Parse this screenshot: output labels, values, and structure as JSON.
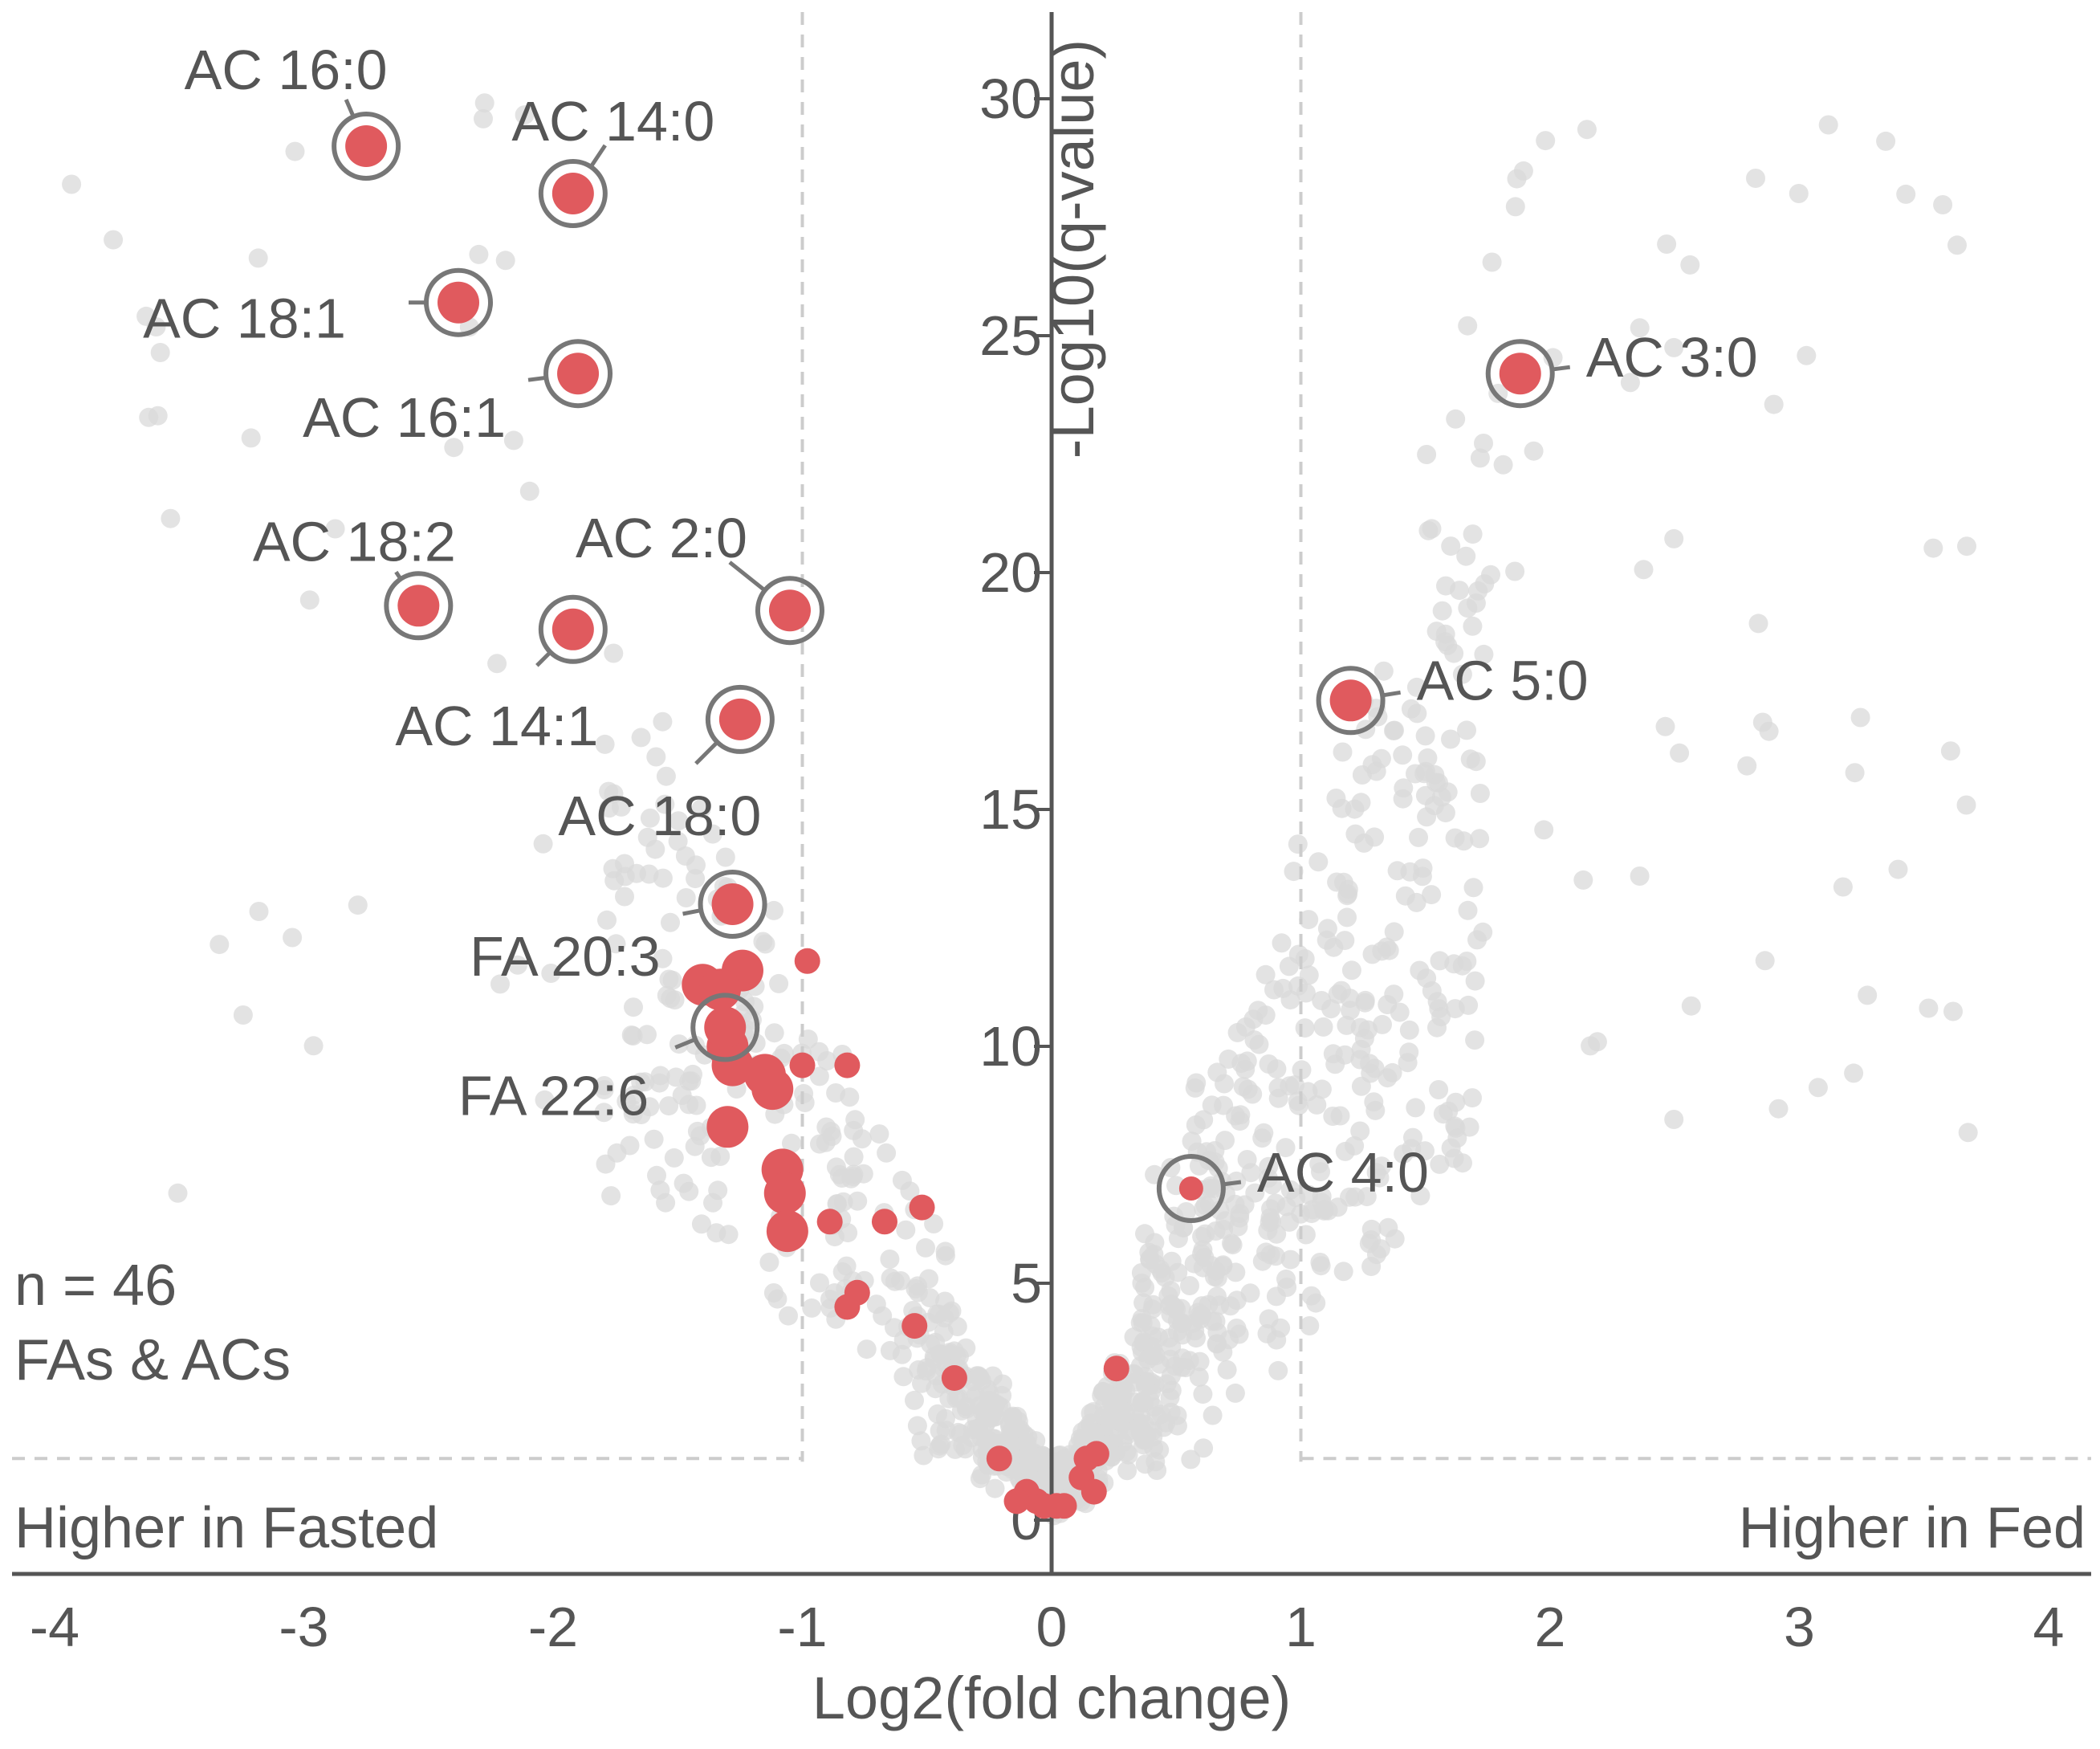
{
  "chart_data": {
    "type": "scatter",
    "title": "",
    "xlabel": "Log2(fold change)",
    "ylabel": "-Log10(q-value)",
    "xlim": [
      -4.2,
      4.2
    ],
    "ylim": [
      -0.8,
      31.5
    ],
    "x_ticks": [
      "-4",
      "-3",
      "-2",
      "-1",
      "0",
      "1",
      "2",
      "3",
      "4"
    ],
    "y_ticks": [
      "0",
      "5",
      "10",
      "15",
      "20",
      "25",
      "30"
    ],
    "thresholds": {
      "log2fc": [
        -1,
        1
      ],
      "q_line": 1.3
    },
    "grid": false,
    "colors": {
      "highlight": "#e05a5e",
      "background_points": "#d9d9d9",
      "ring": "#777777",
      "axis": "#555555",
      "threshold": "#cccccc"
    },
    "annotations": {
      "n_line1": "n = 46",
      "n_line2": "FAs & ACs",
      "left_region": "Higher in Fasted",
      "right_region": "Higher in Fed"
    },
    "labeled_points": [
      {
        "label": "AC 16:0",
        "x": -2.75,
        "y": 29.0
      },
      {
        "label": "AC 14:0",
        "x": -1.92,
        "y": 28.0
      },
      {
        "label": "AC 18:1",
        "x": -2.38,
        "y": 25.7
      },
      {
        "label": "AC 16:1",
        "x": -1.9,
        "y": 24.2
      },
      {
        "label": "AC 18:2",
        "x": -2.54,
        "y": 19.3
      },
      {
        "label": "AC 2:0",
        "x": -1.05,
        "y": 19.2
      },
      {
        "label": "AC 14:1",
        "x": -1.92,
        "y": 18.8
      },
      {
        "label": "AC 18:0",
        "x": -1.25,
        "y": 16.9
      },
      {
        "label": "FA 20:3",
        "x": -1.28,
        "y": 13.0
      },
      {
        "label": "FA 22:6",
        "x": -1.31,
        "y": 10.4
      },
      {
        "label": "AC 3:0",
        "x": 1.88,
        "y": 24.2
      },
      {
        "label": "AC 5:0",
        "x": 1.2,
        "y": 17.3
      },
      {
        "label": "AC 4:0",
        "x": 0.56,
        "y": 7.0
      }
    ],
    "highlight_points": [
      {
        "x": -1.24,
        "y": 11.6
      },
      {
        "x": -1.4,
        "y": 11.3
      },
      {
        "x": -1.33,
        "y": 11.2
      },
      {
        "x": -1.3,
        "y": 10.0
      },
      {
        "x": -1.28,
        "y": 9.6
      },
      {
        "x": -1.15,
        "y": 9.4
      },
      {
        "x": -1.12,
        "y": 9.1
      },
      {
        "x": -1.3,
        "y": 8.3
      },
      {
        "x": -1.08,
        "y": 7.4
      },
      {
        "x": -1.07,
        "y": 6.9
      },
      {
        "x": -1.06,
        "y": 6.1
      },
      {
        "x": -1.0,
        "y": 9.6
      },
      {
        "x": -0.98,
        "y": 11.8
      },
      {
        "x": -0.82,
        "y": 9.6
      },
      {
        "x": -0.89,
        "y": 6.3
      },
      {
        "x": -0.67,
        "y": 6.3
      },
      {
        "x": -0.52,
        "y": 6.6
      },
      {
        "x": -0.78,
        "y": 4.8
      },
      {
        "x": -0.82,
        "y": 4.5
      },
      {
        "x": -0.55,
        "y": 4.1
      },
      {
        "x": -0.39,
        "y": 3.0
      },
      {
        "x": -0.21,
        "y": 1.3
      },
      {
        "x": -0.1,
        "y": 0.6
      },
      {
        "x": -0.06,
        "y": 0.4
      },
      {
        "x": 0.02,
        "y": 0.3
      },
      {
        "x": 0.14,
        "y": 1.3
      },
      {
        "x": 0.18,
        "y": 1.4
      },
      {
        "x": 0.12,
        "y": 0.9
      },
      {
        "x": 0.17,
        "y": 0.6
      },
      {
        "x": 0.26,
        "y": 3.2
      },
      {
        "x": -0.14,
        "y": 0.4
      },
      {
        "x": -0.03,
        "y": 0.3
      },
      {
        "x": 0.05,
        "y": 0.3
      }
    ],
    "background_points_count": 1200
  }
}
